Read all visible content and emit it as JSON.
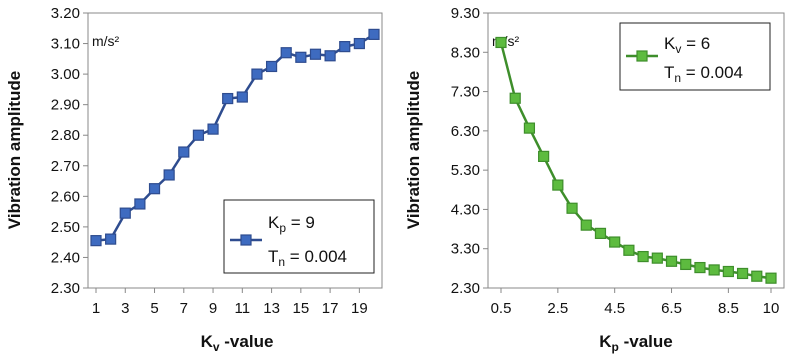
{
  "chart_data": [
    {
      "type": "line",
      "xlabel_main": "K",
      "xlabel_sub": "v",
      "xlabel_suffix": " -value",
      "ylabel": "Vibration amplitude",
      "unit": "m/s²",
      "ylim": [
        2.3,
        3.2
      ],
      "yticks": [
        "2.30",
        "2.40",
        "2.50",
        "2.60",
        "2.70",
        "2.80",
        "2.90",
        "3.00",
        "3.10",
        "3.20"
      ],
      "xlim": [
        1,
        20
      ],
      "xticks": [
        "1",
        "3",
        "5",
        "7",
        "9",
        "11",
        "13",
        "15",
        "17",
        "19"
      ],
      "grid": false,
      "legend_position": "bottom-right",
      "legend": {
        "line1_main": "K",
        "line1_sub": "p",
        "line1_value": " = 9",
        "line2_main": "T",
        "line2_sub": "n",
        "line2_value": " = 0.004"
      },
      "series": [
        {
          "color": "#2E4C8F",
          "fill": "#3E6BC0",
          "marker": "square",
          "x": [
            1,
            2,
            3,
            4,
            5,
            6,
            7,
            8,
            9,
            10,
            11,
            12,
            13,
            14,
            15,
            16,
            17,
            18,
            19,
            20
          ],
          "y": [
            2.455,
            2.46,
            2.545,
            2.575,
            2.625,
            2.67,
            2.745,
            2.8,
            2.82,
            2.92,
            2.925,
            3.0,
            3.025,
            3.07,
            3.055,
            3.065,
            3.06,
            3.09,
            3.1,
            3.13
          ]
        }
      ]
    },
    {
      "type": "line",
      "xlabel_main": "K",
      "xlabel_sub": "p",
      "xlabel_suffix": " -value",
      "ylabel": "Vibration amplitude",
      "unit": "m/s²",
      "ylim": [
        2.3,
        9.3
      ],
      "yticks": [
        "2.30",
        "3.30",
        "4.30",
        "5.30",
        "6.30",
        "7.30",
        "8.30",
        "9.30"
      ],
      "xlim": [
        0.5,
        10
      ],
      "xticks": [
        "0.5",
        "2.5",
        "4.5",
        "6.5",
        "8.5",
        "10"
      ],
      "grid": false,
      "legend_position": "top-right",
      "legend": {
        "line1_main": "K",
        "line1_sub": "v",
        "line1_value": " = 6",
        "line2_main": "T",
        "line2_sub": "n",
        "line2_value": " = 0.004"
      },
      "series": [
        {
          "color": "#3E8E2B",
          "fill": "#5DBB3F",
          "marker": "square",
          "x": [
            0.5,
            1,
            1.5,
            2,
            2.5,
            3,
            3.5,
            4,
            4.5,
            5,
            5.5,
            6,
            6.5,
            7,
            7.5,
            8,
            8.5,
            9,
            9.5,
            10
          ],
          "y": [
            8.55,
            7.13,
            6.37,
            5.65,
            4.92,
            4.33,
            3.9,
            3.69,
            3.47,
            3.26,
            3.1,
            3.06,
            2.98,
            2.9,
            2.82,
            2.76,
            2.72,
            2.67,
            2.6,
            2.55
          ]
        }
      ]
    }
  ]
}
